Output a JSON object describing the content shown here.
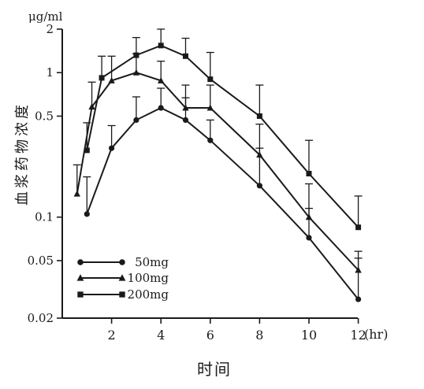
{
  "chart_data": {
    "type": "line",
    "title": "",
    "xlabel": "时间",
    "x_unit": "(hr)",
    "ylabel": "血浆药物浓度",
    "y_unit": "μg/ml",
    "y_scale": "log",
    "xlim": [
      0,
      12
    ],
    "ylim": [
      0.02,
      2
    ],
    "x_ticks": [
      2,
      4,
      6,
      8,
      10,
      12
    ],
    "x_tick_labels": [
      "2",
      "4",
      "6",
      "8",
      "10",
      "12"
    ],
    "y_ticks": [
      0.02,
      0.05,
      0.1,
      0.5,
      1,
      2
    ],
    "y_tick_labels": [
      "0.02",
      "0.05",
      "0.1",
      "0.5",
      "1",
      "2"
    ],
    "grid": false,
    "legend_position": "bottom-left",
    "series": [
      {
        "name": "50mg",
        "marker": "circle",
        "x": [
          1,
          2,
          3,
          4,
          5,
          6,
          8,
          10,
          12
        ],
        "y": [
          0.105,
          0.3,
          0.47,
          0.57,
          0.47,
          0.34,
          0.165,
          0.072,
          0.027
        ],
        "y_err_upper": [
          0.19,
          0.43,
          0.68,
          0.78,
          0.67,
          0.47,
          0.3,
          0.115,
          0.052
        ]
      },
      {
        "name": "100mg",
        "marker": "triangle",
        "x": [
          0.6,
          1.2,
          2,
          3,
          4,
          5,
          6,
          8,
          10,
          12
        ],
        "y": [
          0.145,
          0.58,
          0.88,
          1.0,
          0.88,
          0.57,
          0.57,
          0.27,
          0.1,
          0.043
        ],
        "y_err_upper": [
          0.23,
          0.86,
          1.3,
          1.35,
          1.2,
          0.82,
          0.82,
          0.44,
          0.17,
          0.058
        ]
      },
      {
        "name": "200mg",
        "marker": "square",
        "x": [
          1,
          1.6,
          3,
          4,
          5,
          6,
          8,
          10,
          12
        ],
        "y": [
          0.29,
          0.92,
          1.32,
          1.54,
          1.3,
          0.9,
          0.5,
          0.2,
          0.085
        ],
        "y_err_upper": [
          0.45,
          1.3,
          1.75,
          2.0,
          1.73,
          1.38,
          0.82,
          0.34,
          0.14
        ]
      }
    ]
  }
}
